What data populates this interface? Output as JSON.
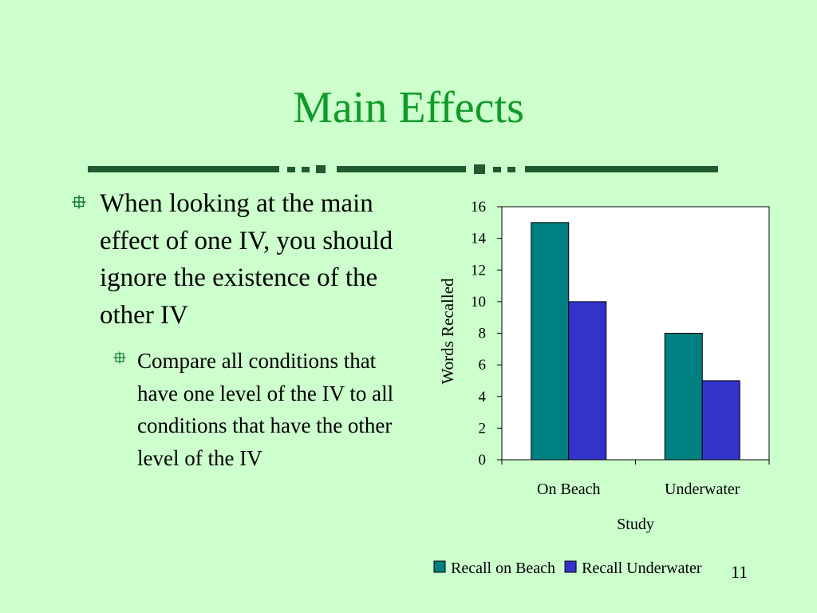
{
  "slide": {
    "title": "Main Effects",
    "page_number": "11",
    "bullets": [
      {
        "text": "When looking at the main effect of one IV, you should ignore the existence of the other IV"
      }
    ],
    "sub_bullets": [
      {
        "text": "Compare all conditions that have one level of the IV to all conditions that have the other level of the IV"
      }
    ],
    "bullet_icon": "crosshair-square-icon",
    "colors": {
      "background": "#ccffcc",
      "title": "#0f9a2a",
      "divider": "#1f5a30"
    }
  },
  "chart_data": {
    "type": "bar",
    "categories": [
      "On Beach",
      "Underwater"
    ],
    "series": [
      {
        "name": "Recall on Beach",
        "values": [
          15,
          8
        ],
        "color": "#008080"
      },
      {
        "name": "Recall Underwater",
        "values": [
          10,
          5
        ],
        "color": "#3333cc"
      }
    ],
    "title": "",
    "xlabel": "Study",
    "ylabel": "Words Recalled",
    "ylim": [
      0,
      16
    ],
    "yticks": [
      0,
      2,
      4,
      6,
      8,
      10,
      12,
      14,
      16
    ],
    "grid": false,
    "legend": "bottom"
  }
}
